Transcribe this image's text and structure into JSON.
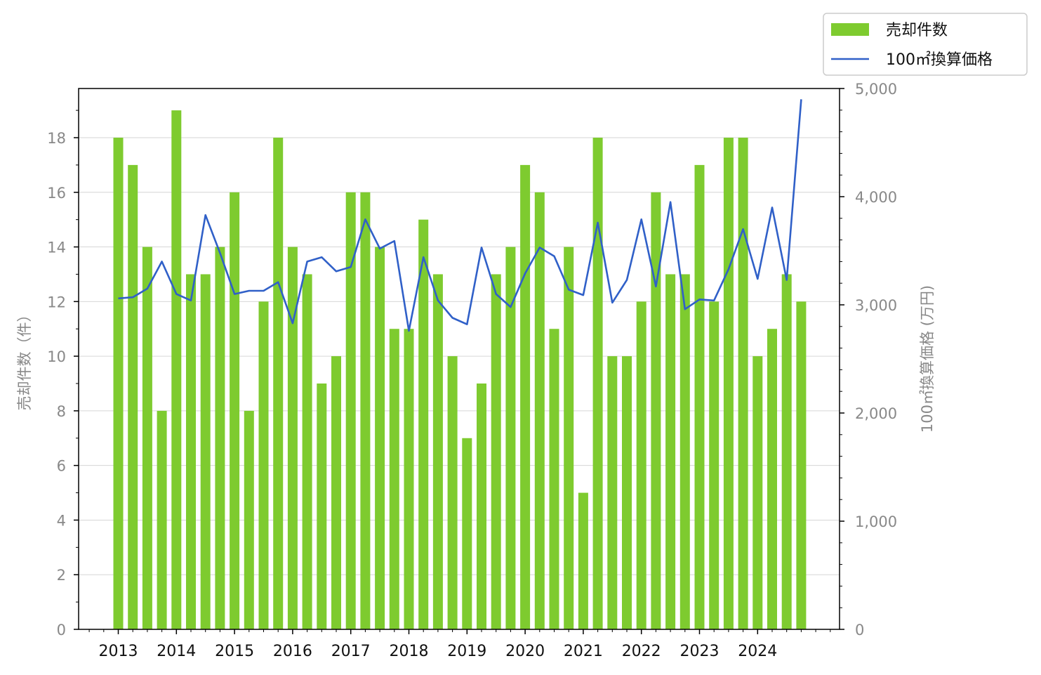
{
  "chart_data": {
    "type": "bar+line",
    "x_tick_labels": [
      "2013",
      "2014",
      "2015",
      "2016",
      "2017",
      "2018",
      "2019",
      "2020",
      "2021",
      "2022",
      "2023",
      "2024"
    ],
    "quarters_start": "2013Q1",
    "series": [
      {
        "name": "売却件数",
        "type": "bar",
        "axis": "left",
        "color": "#7ecb2f",
        "values": [
          18,
          17,
          14,
          8,
          19,
          13,
          13,
          14,
          16,
          8,
          12,
          18,
          14,
          13,
          9,
          10,
          16,
          16,
          14,
          11,
          11,
          15,
          13,
          10,
          7,
          9,
          13,
          14,
          17,
          16,
          11,
          14,
          5,
          18,
          10,
          10,
          12,
          16,
          13,
          13,
          17,
          12,
          18,
          18,
          10,
          11,
          13,
          12
        ]
      },
      {
        "name": "100㎡換算価格",
        "type": "line",
        "axis": "right",
        "color": "#3060c8",
        "values": [
          3060,
          3070,
          3150,
          3400,
          3100,
          3040,
          3830,
          3480,
          3100,
          3130,
          3130,
          3210,
          2830,
          3400,
          3440,
          3310,
          3350,
          3790,
          3520,
          3590,
          2760,
          3440,
          3040,
          2880,
          2820,
          3530,
          3100,
          2980,
          3290,
          3530,
          3450,
          3140,
          3090,
          3760,
          3020,
          3230,
          3790,
          3170,
          3950,
          2960,
          3050,
          3040,
          3330,
          3700,
          3240,
          3900,
          3230,
          4900
        ]
      }
    ],
    "y_left": {
      "label": "売却件数（件）",
      "min": 0,
      "max": 19.8,
      "ticks": [
        0,
        2,
        4,
        6,
        8,
        10,
        12,
        14,
        16,
        18
      ],
      "tick_labels": [
        "0",
        "2",
        "4",
        "6",
        "8",
        "10",
        "12",
        "14",
        "16",
        "18"
      ]
    },
    "y_right": {
      "label": "100㎡換算価格 (万円)",
      "min": 0,
      "max": 5000,
      "ticks": [
        0,
        1000,
        2000,
        3000,
        4000,
        5000
      ],
      "tick_labels": [
        "0",
        "1,000",
        "2,000",
        "3,000",
        "4,000",
        "5,000"
      ]
    },
    "grid": "horizontal",
    "legend": {
      "position": "top-right",
      "entries": [
        "売却件数",
        "100㎡換算価格"
      ]
    }
  }
}
